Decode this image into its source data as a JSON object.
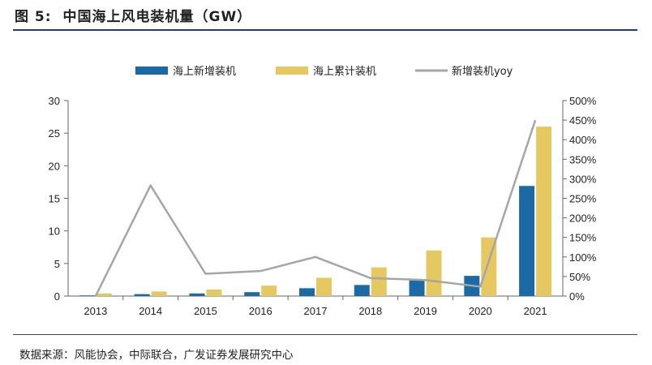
{
  "figure": {
    "label": "图 5:",
    "title": "中国海上风电装机量（GW）",
    "source": "数据来源：风能协会，中际联合，广发证券发展研究中心"
  },
  "colors": {
    "new": "#1b6aa6",
    "cumulative": "#e6c860",
    "yoy": "#a6a6a6",
    "rule": "#1f3f6e"
  },
  "chart_data": {
    "type": "bar",
    "categories": [
      "2013",
      "2014",
      "2015",
      "2016",
      "2017",
      "2018",
      "2019",
      "2020",
      "2021"
    ],
    "series": [
      {
        "name": "海上新增装机",
        "type": "bar",
        "axis": "left",
        "values": [
          0.1,
          0.3,
          0.4,
          0.6,
          1.2,
          1.7,
          2.4,
          3.1,
          16.9
        ]
      },
      {
        "name": "海上累计装机",
        "type": "bar",
        "axis": "left",
        "values": [
          0.4,
          0.7,
          1.0,
          1.6,
          2.8,
          4.4,
          7.0,
          9.0,
          26.0
        ]
      },
      {
        "name": "新增装机yoy",
        "type": "line",
        "axis": "right",
        "unit": "%",
        "values": [
          0,
          283,
          57,
          64,
          100,
          46,
          41,
          24,
          450
        ]
      }
    ],
    "ylim_left": [
      0,
      30
    ],
    "yticks_left": [
      "0",
      "5",
      "10",
      "15",
      "20",
      "25",
      "30"
    ],
    "ylim_right": [
      0,
      500
    ],
    "yticks_right": [
      "0%",
      "50%",
      "100%",
      "150%",
      "200%",
      "250%",
      "300%",
      "350%",
      "400%",
      "450%",
      "500%"
    ],
    "legend_position": "top-center",
    "grid": false
  }
}
